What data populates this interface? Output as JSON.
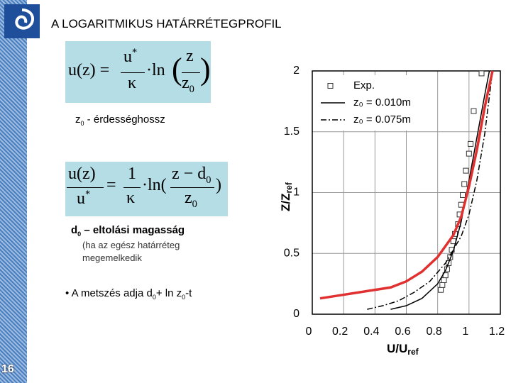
{
  "slide": {
    "title": "A LOGARITMIKUS HATÁRRÉTEGPROFIL",
    "formula1": {
      "lhs": "u(z) =",
      "num1": "u",
      "num1_sup": "*",
      "den1": "κ",
      "op": "·ln",
      "open": "(",
      "num2": "z",
      "den2": "z",
      "den2_sub": "0",
      "close": ")"
    },
    "note1": {
      "sym": "z",
      "sub": "0",
      "text": " - érdességhossz"
    },
    "formula2": {
      "num1": "u(z)",
      "den1": "u",
      "den1_sup": "*",
      "eq": "=",
      "num2": "1",
      "den2": "κ",
      "op": "·ln(",
      "num3": "z − d",
      "num3_sub": "0",
      "den3": "z",
      "den3_sub": "0",
      "close": ")"
    },
    "note2": {
      "sym": "d",
      "sub": "0",
      "text": " – eltolási magasság"
    },
    "note3": [
      "(ha az egész határréteg",
      "megemelkedik"
    ],
    "bullet": {
      "mark": "•",
      "text1": "A metszés adja d",
      "sub1": "0",
      "text2": "+ ln z",
      "sub2": "0",
      "text3": "-t"
    },
    "page_number": "16"
  },
  "chart_data": {
    "type": "line",
    "xlabel": {
      "main": "U/U",
      "sub": "ref"
    },
    "ylabel": {
      "main": "Z/Z",
      "sub": "ref"
    },
    "xlim": [
      0,
      1.2
    ],
    "ylim": [
      0,
      2
    ],
    "xticks": [
      0,
      0.2,
      0.4,
      0.6,
      0.8,
      1,
      1.2
    ],
    "yticks": [
      0,
      0.5,
      1,
      1.5,
      2
    ],
    "grid": true,
    "legend": "top-left",
    "series": [
      {
        "name": "Exp.",
        "style": "markers",
        "color": "#333333",
        "x": [
          0.82,
          0.83,
          0.84,
          0.85,
          0.86,
          0.87,
          0.88,
          0.89,
          0.9,
          0.91,
          0.93,
          0.94,
          0.95,
          0.96,
          0.97,
          0.98,
          1.0,
          1.01,
          1.03,
          1.08
        ],
        "values": [
          0.2,
          0.24,
          0.28,
          0.32,
          0.37,
          0.42,
          0.47,
          0.53,
          0.6,
          0.66,
          0.74,
          0.82,
          0.9,
          0.98,
          1.07,
          1.18,
          1.32,
          1.4,
          1.67,
          1.98
        ]
      },
      {
        "name": "z₀ = 0.010m",
        "style": "solid",
        "color": "#000000",
        "x": [
          0.5,
          0.6,
          0.7,
          0.8,
          0.85,
          0.9,
          0.95,
          1.0,
          1.05,
          1.1,
          1.13
        ],
        "values": [
          0.04,
          0.07,
          0.13,
          0.25,
          0.36,
          0.52,
          0.76,
          1.1,
          1.45,
          1.8,
          2.0
        ]
      },
      {
        "name": "z₀ = 0.075m",
        "style": "dashdot",
        "color": "#000000",
        "x": [
          0.35,
          0.45,
          0.55,
          0.65,
          0.75,
          0.85,
          0.95,
          1.0,
          1.05,
          1.1,
          1.15
        ],
        "values": [
          0.04,
          0.07,
          0.11,
          0.18,
          0.27,
          0.42,
          0.64,
          0.82,
          1.1,
          1.48,
          2.0
        ]
      },
      {
        "style": "solid-thick",
        "color": "#e03030",
        "x": [
          0.05,
          0.2,
          0.35,
          0.5,
          0.6,
          0.7,
          0.8,
          0.9,
          0.95,
          1.0,
          1.05,
          1.1,
          1.15
        ],
        "values": [
          0.13,
          0.16,
          0.19,
          0.22,
          0.27,
          0.35,
          0.47,
          0.65,
          0.8,
          1.05,
          1.35,
          1.7,
          2.0
        ]
      }
    ]
  }
}
